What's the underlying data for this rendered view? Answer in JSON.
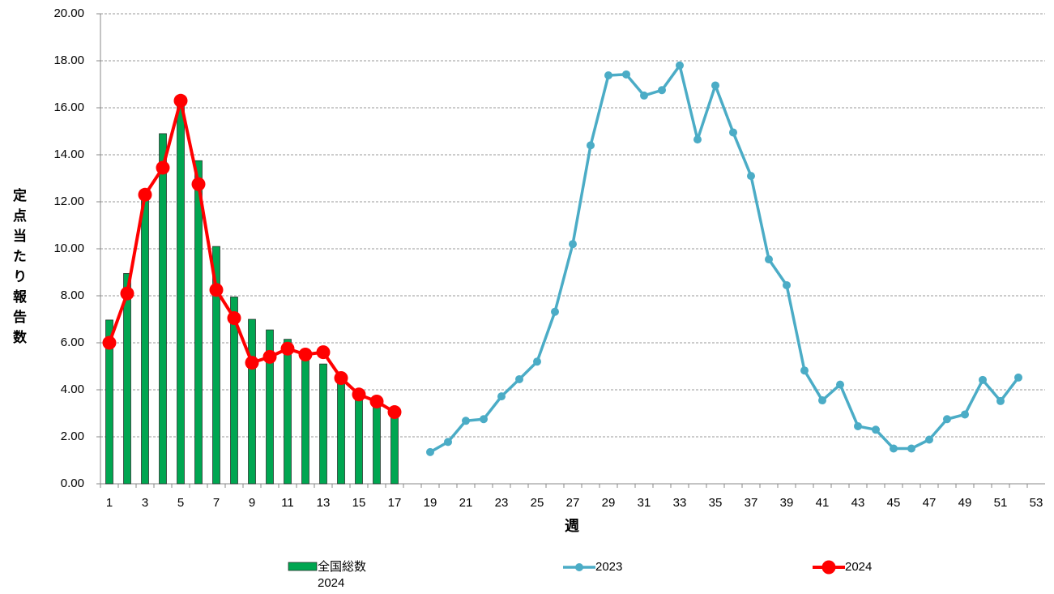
{
  "chart_data": {
    "type": "bar",
    "y_label": "定点当たり報告数",
    "x_label": "週",
    "categories": [
      1,
      null,
      3,
      null,
      5,
      null,
      7,
      null,
      9,
      null,
      11,
      null,
      13,
      null,
      15,
      null,
      17,
      null,
      19,
      null,
      21,
      null,
      23,
      null,
      25,
      null,
      27,
      null,
      29,
      null,
      31,
      null,
      33,
      null,
      35,
      null,
      37,
      null,
      39,
      null,
      41,
      null,
      43,
      null,
      45,
      null,
      47,
      null,
      49,
      null,
      51,
      null,
      53
    ],
    "ylim": [
      0,
      20
    ],
    "yticks": [
      {
        "value": 0,
        "label": "0.00"
      },
      {
        "value": 2,
        "label": "2.00"
      },
      {
        "value": 4,
        "label": "4.00"
      },
      {
        "value": 6,
        "label": "6.00"
      },
      {
        "value": 8,
        "label": "8.00"
      },
      {
        "value": 10,
        "label": "10.00"
      },
      {
        "value": 12,
        "label": "12.00"
      },
      {
        "value": 14,
        "label": "14.00"
      },
      {
        "value": 16,
        "label": "16.00"
      },
      {
        "value": 18,
        "label": "18.00"
      },
      {
        "value": 20,
        "label": "20.00"
      }
    ],
    "grid": true,
    "series": [
      {
        "name": "全国総数 2024",
        "type": "bar",
        "color": "#00a651",
        "values": [
          6.97,
          8.95,
          12.2,
          14.9,
          16.1,
          13.75,
          10.1,
          7.95,
          7.0,
          6.55,
          6.15,
          5.6,
          5.1,
          4.5,
          3.75,
          3.45,
          3.05,
          null,
          null,
          null,
          null,
          null,
          null,
          null,
          null,
          null,
          null,
          null,
          null,
          null,
          null,
          null,
          null,
          null,
          null,
          null,
          null,
          null,
          null,
          null,
          null,
          null,
          null,
          null,
          null,
          null,
          null,
          null,
          null,
          null,
          null,
          null,
          null
        ]
      },
      {
        "name": "2023",
        "type": "line",
        "color": "#4bacc6",
        "values": [
          null,
          null,
          null,
          null,
          null,
          null,
          null,
          null,
          null,
          null,
          null,
          null,
          null,
          null,
          null,
          null,
          null,
          null,
          1.35,
          1.78,
          2.68,
          2.75,
          3.72,
          4.45,
          5.2,
          7.32,
          10.2,
          14.4,
          17.38,
          17.42,
          16.52,
          16.75,
          17.8,
          14.65,
          16.95,
          14.95,
          13.1,
          9.55,
          8.45,
          4.82,
          3.55,
          4.22,
          2.45,
          2.3,
          1.5,
          1.5,
          1.88,
          2.75,
          2.95,
          4.42,
          3.52,
          4.52,
          null
        ]
      },
      {
        "name": "2024",
        "type": "line",
        "color": "#ff0000",
        "values": [
          6.0,
          8.1,
          12.3,
          13.45,
          16.3,
          12.75,
          8.25,
          7.05,
          5.15,
          5.4,
          5.75,
          5.5,
          5.6,
          4.5,
          3.8,
          3.5,
          3.05,
          null,
          null,
          null,
          null,
          null,
          null,
          null,
          null,
          null,
          null,
          null,
          null,
          null,
          null,
          null,
          null,
          null,
          null,
          null,
          null,
          null,
          null,
          null,
          null,
          null,
          null,
          null,
          null,
          null,
          null,
          null,
          null,
          null,
          null,
          null,
          null
        ]
      }
    ]
  }
}
